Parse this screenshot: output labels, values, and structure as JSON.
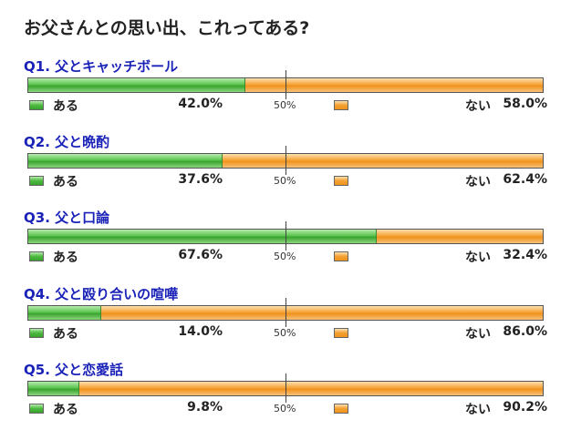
{
  "title": "お父さんとの思い出、これってある?",
  "legend": {
    "yes": "ある",
    "no": "ない",
    "mid": "50%"
  },
  "colors": {
    "yes": "#4db840",
    "no": "#f4a030",
    "question": "#1a22b8"
  },
  "chart_data": {
    "type": "bar",
    "orientation": "horizontal-stacked",
    "scale": [
      0,
      100
    ],
    "categories": [
      "Q1. 父とキャッチボール",
      "Q2. 父と晩酌",
      "Q3. 父と口論",
      "Q4. 父と殴り合いの喧嘩",
      "Q5. 父と恋愛話"
    ],
    "series": [
      {
        "name": "ある",
        "values": [
          42.0,
          37.6,
          67.6,
          14.0,
          9.8
        ]
      },
      {
        "name": "ない",
        "values": [
          58.0,
          62.4,
          32.4,
          86.0,
          90.2
        ]
      }
    ]
  },
  "questions": [
    {
      "label": "Q1. 父とキャッチボール",
      "yes": "42.0%",
      "no": "58.0%"
    },
    {
      "label": "Q2. 父と晩酌",
      "yes": "37.6%",
      "no": "62.4%"
    },
    {
      "label": "Q3. 父と口論",
      "yes": "67.6%",
      "no": "32.4%"
    },
    {
      "label": "Q4. 父と殴り合いの喧嘩",
      "yes": "14.0%",
      "no": "86.0%"
    },
    {
      "label": "Q5. 父と恋愛話",
      "yes": "9.8%",
      "no": "90.2%"
    }
  ]
}
